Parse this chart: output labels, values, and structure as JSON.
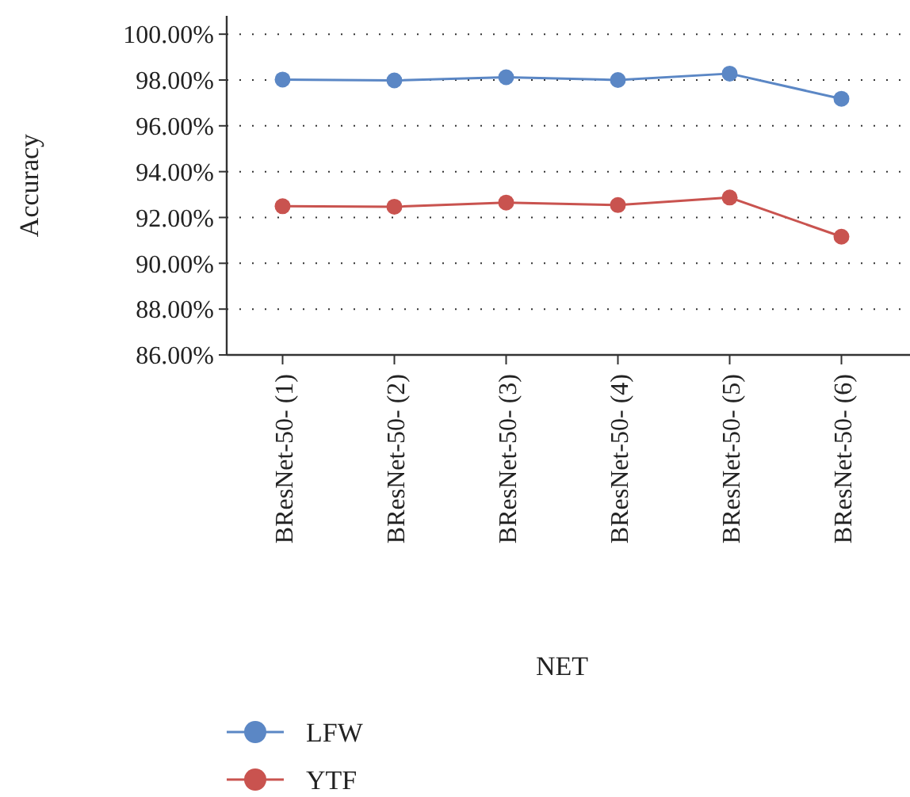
{
  "chart_data": {
    "type": "line",
    "xlabel": "NET",
    "ylabel": "Accuracy",
    "categories": [
      "BResNet-50- (1)",
      "BResNet-50- (2)",
      "BResNet-50- (3)",
      "BResNet-50- (4)",
      "BResNet-50- (5)",
      "BResNet-50- (6)"
    ],
    "series": [
      {
        "name": "LFW",
        "color": "#5b87c5",
        "values": [
          98.02,
          97.98,
          98.12,
          98.0,
          98.28,
          97.18
        ]
      },
      {
        "name": "YTF",
        "color": "#c9534f",
        "values": [
          92.49,
          92.47,
          92.65,
          92.54,
          92.87,
          91.16
        ]
      }
    ],
    "ylim": [
      86,
      100.8
    ],
    "yticks": [
      {
        "value": 86,
        "label": "86.00%"
      },
      {
        "value": 88,
        "label": "88.00%"
      },
      {
        "value": 90,
        "label": "90.00%"
      },
      {
        "value": 92,
        "label": "92.00%"
      },
      {
        "value": 94,
        "label": "94.00%"
      },
      {
        "value": 96,
        "label": "96.00%"
      },
      {
        "value": 98,
        "label": "98.00%"
      },
      {
        "value": 100,
        "label": "100.00%"
      }
    ],
    "grid": "y",
    "legend": "bottom left",
    "marker": "circle",
    "line_style": "solid"
  }
}
